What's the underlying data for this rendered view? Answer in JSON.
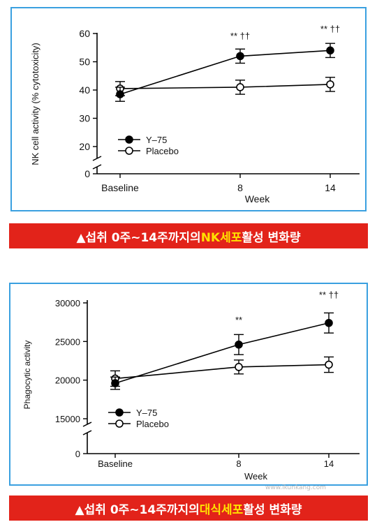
{
  "chart_data": [
    {
      "type": "line",
      "ylabel": "NK cell activity (% cytotoxicity)",
      "xlabel": "Week",
      "categories": [
        "Baseline",
        "8",
        "14"
      ],
      "yticks": [
        0,
        20,
        30,
        40,
        50,
        60
      ],
      "ylim": [
        0,
        60
      ],
      "axis_break": true,
      "series": [
        {
          "name": "Y–75",
          "marker": "filled",
          "values": [
            38.5,
            52,
            54
          ],
          "error": [
            2.5,
            2.5,
            2.5
          ]
        },
        {
          "name": "Placebo",
          "marker": "open",
          "values": [
            40.5,
            41,
            42
          ],
          "error": [
            2.5,
            2.5,
            2.5
          ]
        }
      ],
      "annotations": [
        {
          "category": "8",
          "text": "** ††"
        },
        {
          "category": "14",
          "text": "** ††"
        }
      ],
      "legend": "lower-left",
      "banner": {
        "prefix": "▲섭취 0주~14주까지의 ",
        "highlight": "NK세포",
        "suffix": "활성 변화량"
      }
    },
    {
      "type": "line",
      "ylabel": "Phagocytic activity",
      "xlabel": "Week",
      "categories": [
        "Baseline",
        "8",
        "14"
      ],
      "yticks": [
        0,
        15000,
        20000,
        25000,
        30000
      ],
      "ylim": [
        0,
        30000
      ],
      "axis_break": true,
      "series": [
        {
          "name": "Y–75",
          "marker": "filled",
          "values": [
            19600,
            24600,
            27400
          ],
          "error": [
            800,
            1300,
            1300
          ]
        },
        {
          "name": "Placebo",
          "marker": "open",
          "values": [
            20200,
            21700,
            22000
          ],
          "error": [
            1000,
            900,
            1000
          ]
        }
      ],
      "annotations": [
        {
          "category": "8",
          "text": "**"
        },
        {
          "category": "14",
          "text": "** ††"
        }
      ],
      "legend": "lower-left",
      "banner": {
        "prefix": "▲섭취 0주~14주까지의 ",
        "highlight": "대식세포",
        "suffix": "활성 변화량"
      }
    }
  ],
  "watermark": "www.ikunkang.com"
}
